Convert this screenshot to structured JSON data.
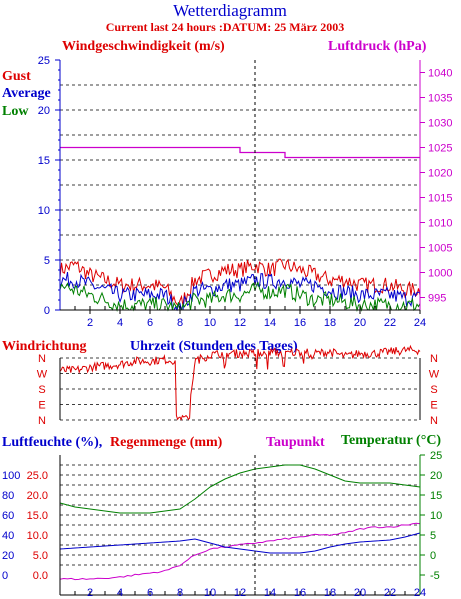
{
  "title": "Wetterdiagramm",
  "subtitle": "Current last 24 hours :DATUM: 25 März 2003",
  "colors": {
    "red": "#dd0000",
    "blue": "#0000cc",
    "green": "#008000",
    "magenta": "#cc00cc",
    "axis": "#000000",
    "grid": "#000000"
  },
  "panel1": {
    "left_label": "Windgeschwindigkeit (m/s)",
    "right_label": "Luftdruck (hPa)",
    "legend": [
      "Gust",
      "Average",
      "Low"
    ],
    "y_left_ticks": [
      "0",
      "5",
      "10",
      "15",
      "20",
      "25"
    ],
    "y_right_ticks": [
      "995",
      "1000",
      "1005",
      "1010",
      "1015",
      "1020",
      "1025",
      "1030",
      "1035",
      "1040"
    ],
    "x_ticks": [
      "2",
      "4",
      "6",
      "8",
      "10",
      "12",
      "14",
      "16",
      "18",
      "20",
      "22",
      "24"
    ]
  },
  "panel2": {
    "left_label": "Windrichtung",
    "center_label": "Uhrzeit (Stunden des Tages)",
    "dir_ticks": [
      "N",
      "W",
      "S",
      "E",
      "N"
    ]
  },
  "panel3": {
    "label_humidity": "Luftfeuchte (%),",
    "label_rain": "Regenmenge (mm)",
    "label_dew": "Taupunkt",
    "label_temp": "Temperatur (°C)",
    "y_humidity_ticks": [
      "0",
      "20",
      "40",
      "60",
      "80",
      "100"
    ],
    "y_rain_ticks": [
      "0.0",
      "5.0",
      "10.0",
      "15.0",
      "20.0",
      "25.0"
    ],
    "y_temp_ticks": [
      "-5",
      "0",
      "5",
      "10",
      "15",
      "20",
      "25"
    ],
    "x_ticks": [
      "2",
      "4",
      "6",
      "8",
      "10",
      "12",
      "14",
      "16",
      "18",
      "20",
      "22",
      "24"
    ]
  },
  "chart_data": [
    {
      "type": "line",
      "title": "Windgeschwindigkeit (m/s)",
      "xlabel": "",
      "ylabel": "Windgeschwindigkeit (m/s)",
      "y2label": "Luftdruck (hPa)",
      "xlim": [
        0,
        24
      ],
      "ylim": [
        0,
        25
      ],
      "y2lim": [
        992.5,
        1042.5
      ],
      "x": [
        0,
        1,
        2,
        3,
        4,
        5,
        6,
        7,
        8,
        9,
        10,
        11,
        12,
        13,
        14,
        15,
        16,
        17,
        18,
        19,
        20,
        21,
        22,
        23,
        24
      ],
      "series": [
        {
          "name": "Gust",
          "axis": "left",
          "values": [
            4,
            4.5,
            3.5,
            3,
            2.5,
            2.5,
            2.5,
            2.2,
            0.5,
            3,
            3.5,
            4,
            4,
            4.5,
            4,
            4.5,
            4,
            3.5,
            3,
            3,
            2.5,
            2.5,
            2.5,
            2,
            2
          ]
        },
        {
          "name": "Average",
          "axis": "left",
          "values": [
            3,
            3,
            2.5,
            2,
            1.5,
            1.5,
            1.5,
            1.5,
            0,
            2,
            2,
            2.5,
            2.5,
            3,
            2.8,
            3,
            2.5,
            2.5,
            2,
            1.8,
            1.5,
            1.5,
            1.5,
            1.2,
            1.2
          ]
        },
        {
          "name": "Low",
          "axis": "left",
          "values": [
            2.5,
            2,
            1.5,
            1,
            0.5,
            0.5,
            0.5,
            0.5,
            0,
            1,
            1,
            1.5,
            1.5,
            2,
            1.8,
            2,
            1.5,
            1,
            1,
            0.8,
            0.5,
            0.5,
            0.5,
            0.5,
            0.5
          ]
        },
        {
          "axis": "right",
          "values": [
            1025,
            1025,
            1025,
            1025,
            1025,
            1025,
            1025,
            1025,
            1025,
            1025,
            1025,
            1025,
            1025,
            1024,
            1024,
            1024,
            1023,
            1023,
            1023,
            1023,
            1023,
            1023,
            1023,
            1023,
            1023
          ]
        }
      ],
      "vline_x": 13
    },
    {
      "type": "line",
      "title": "Windrichtung",
      "xlabel": "Uhrzeit (Stunden des Tages)",
      "ylabel": "Windrichtung",
      "y_categories": [
        "N",
        "E",
        "S",
        "W",
        "N"
      ],
      "xlim": [
        0,
        24
      ],
      "x": [
        0,
        1,
        2,
        3,
        4,
        5,
        6,
        7,
        8,
        8.5,
        9,
        10,
        11,
        12,
        13,
        14,
        15,
        16,
        17,
        18,
        19,
        20,
        21,
        22,
        23,
        24
      ],
      "series": [
        {
          "values": [
            4.2,
            4.2,
            4.4,
            4.5,
            4.6,
            4.8,
            4.8,
            4.9,
            4.8,
            1.0,
            4.8,
            5.2,
            5.3,
            5.3,
            5.3,
            5.4,
            5.3,
            5.4,
            5.3,
            5.4,
            5.1,
            5.3,
            5.3,
            5.4,
            5.5,
            5.5
          ]
        }
      ],
      "vline_x": 13
    },
    {
      "type": "line",
      "title": "",
      "xlabel": "",
      "ylabel": "Luftfeuchte (%), Regenmenge (mm)",
      "y2label": "Temperatur (°C)",
      "xlim": [
        0,
        24
      ],
      "x": [
        0,
        1,
        2,
        3,
        4,
        5,
        6,
        7,
        8,
        9,
        10,
        11,
        12,
        13,
        14,
        15,
        16,
        17,
        18,
        19,
        20,
        21,
        22,
        23,
        24
      ],
      "series": [
        {
          "name": "Taupunkt",
          "axis": "right",
          "values": [
            -6,
            -6,
            -6,
            -5.8,
            -5.5,
            -5,
            -4.5,
            -4,
            -2.5,
            0,
            1.5,
            2,
            2.5,
            3,
            3.5,
            4,
            4.5,
            5,
            5,
            5.5,
            6.5,
            7,
            7,
            7.5,
            8
          ]
        },
        {
          "name": "Temperatur",
          "axis": "right",
          "values": [
            13,
            12,
            11.5,
            11,
            10.5,
            10.5,
            10.5,
            11,
            11.5,
            14,
            17,
            19,
            20.5,
            21.5,
            22,
            22.5,
            22.5,
            21.5,
            20,
            18.5,
            18,
            18,
            18,
            17.5,
            17
          ]
        },
        {
          "name": "Luftfeuchte",
          "axis": "left",
          "values": [
            26,
            27,
            28,
            29,
            30,
            31,
            32,
            33,
            34,
            36,
            32,
            28,
            26,
            24,
            22,
            22,
            22,
            24,
            28,
            31,
            33,
            34,
            35,
            38,
            42
          ]
        }
      ],
      "ylim_humidity": [
        0,
        100
      ],
      "ylim_rain": [
        0,
        25
      ],
      "y2lim": [
        -5,
        25
      ],
      "vline_x": 13
    }
  ]
}
